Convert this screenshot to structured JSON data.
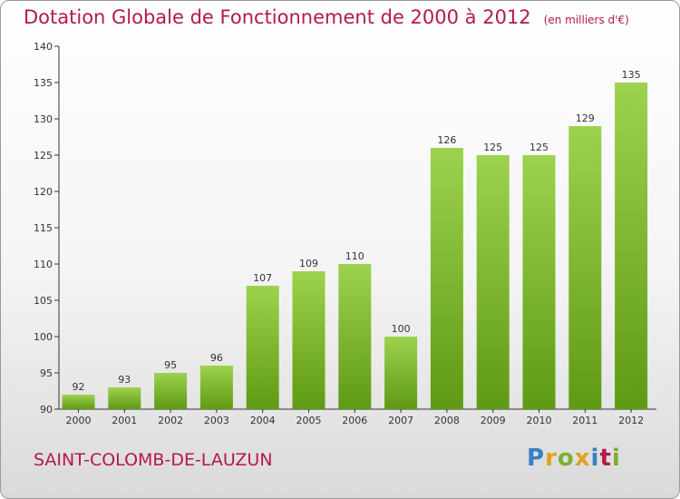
{
  "header": {
    "title": "Dotation Globale de Fonctionnement de 2000 à 2012",
    "unit": "(en milliers d'€)"
  },
  "footer": {
    "commune": "SAINT-COLOMB-DE-LAUZUN",
    "logo_letters": [
      {
        "ch": "P",
        "color": "#3a7fc4"
      },
      {
        "ch": "r",
        "color": "#e3a020"
      },
      {
        "ch": "o",
        "color": "#7ab030"
      },
      {
        "ch": "x",
        "color": "#e3a020"
      },
      {
        "ch": "i",
        "color": "#3a7fc4"
      },
      {
        "ch": "t",
        "color": "#b31a4a"
      },
      {
        "ch": "i",
        "color": "#7ab030"
      }
    ]
  },
  "chart_data": {
    "type": "bar",
    "title": "Dotation Globale de Fonctionnement de 2000 à 2012",
    "subtitle": "(en milliers d'€)",
    "categories": [
      "2000",
      "2001",
      "2002",
      "2003",
      "2004",
      "2005",
      "2006",
      "2007",
      "2008",
      "2009",
      "2010",
      "2011",
      "2012"
    ],
    "values": [
      92,
      93,
      95,
      96,
      107,
      109,
      110,
      100,
      126,
      125,
      125,
      129,
      135
    ],
    "ylim": [
      90,
      140
    ],
    "yticks": [
      90,
      95,
      100,
      105,
      110,
      115,
      120,
      125,
      130,
      135,
      140
    ],
    "grid": false,
    "colors": {
      "bar_light": "#9dd24e",
      "bar_dark": "#5f9a14",
      "axis": "#333333"
    }
  }
}
